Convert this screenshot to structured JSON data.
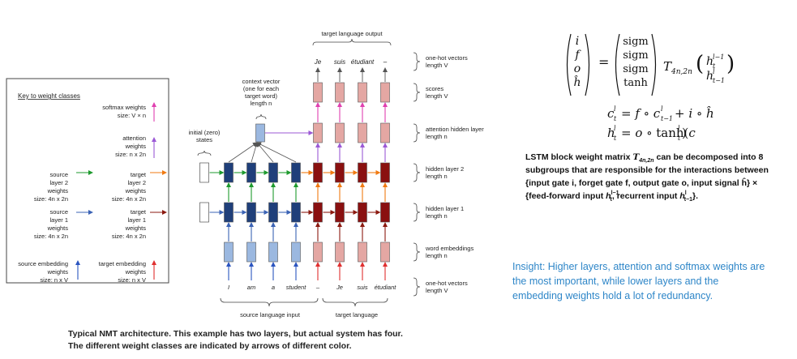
{
  "key": {
    "title": "Key to weight classes",
    "items": [
      {
        "id": "softmax",
        "lines": [
          "softmax weights",
          "size: V × n"
        ],
        "color": "#e040b0"
      },
      {
        "id": "attention",
        "lines": [
          "attention",
          "weights",
          "size: n x 2n"
        ],
        "color": "#9b59d6"
      },
      {
        "id": "src2",
        "lines": [
          "source",
          "layer 2",
          "weights",
          "size: 4n x 2n"
        ],
        "color": "#1e9a2e"
      },
      {
        "id": "tgt2",
        "lines": [
          "target",
          "layer 2",
          "weights",
          "size: 4n x 2n"
        ],
        "color": "#f07a12"
      },
      {
        "id": "src1",
        "lines": [
          "source",
          "layer 1",
          "weights",
          "size: 4n x 2n"
        ],
        "color": "#3b63b5"
      },
      {
        "id": "tgt1",
        "lines": [
          "target",
          "layer 1",
          "weights",
          "size: 4n x 2n"
        ],
        "color": "#8b1a10"
      },
      {
        "id": "srcemb",
        "lines": [
          "source embedding",
          "weights",
          "size: n x V"
        ],
        "color": "#2b55c0"
      },
      {
        "id": "tgtemb",
        "lines": [
          "target embedding",
          "weights",
          "size: n x V"
        ],
        "color": "#e03030"
      }
    ]
  },
  "diagram": {
    "top_label": "target language output",
    "output_words": [
      "Je",
      "suis",
      "étudiant",
      "–"
    ],
    "context_vector": [
      "context vector",
      "(one for each",
      "target word)",
      "length n"
    ],
    "initial_states": [
      "initial (zero)",
      "states"
    ],
    "source_words": [
      "I",
      "am",
      "a",
      "student",
      "–"
    ],
    "target_input_words": [
      "Je",
      "suis",
      "étudiant"
    ],
    "source_label": "source language input",
    "target_label": "target language",
    "right_labels": [
      [
        "one-hot vectors",
        "length V"
      ],
      [
        "scores",
        "length V"
      ],
      [
        "attention hidden layer",
        "length n"
      ],
      [
        "hidden layer 2",
        "length n"
      ],
      [
        "hidden layer 1",
        "length n"
      ],
      [
        "word embeddings",
        "length n"
      ],
      [
        "one-hot vectors",
        "length V"
      ]
    ],
    "colors": {
      "dark_blue": "#1f3f7a",
      "light_blue": "#9bb8e0",
      "dark_red": "#8a1010",
      "light_red": "#e4a7a3"
    }
  },
  "caption": {
    "line1": "Typical NMT architecture. This example has two layers, but actual system has four.",
    "line2": "The different weight classes are indicated by arrows of different color."
  },
  "equations": {
    "vec_left": [
      "i",
      "f",
      "o",
      "ĥ"
    ],
    "vec_mid": [
      "sigm",
      "sigm",
      "sigm",
      "tanh"
    ],
    "matrix": "T",
    "matrix_sub": "4n,2n",
    "eq2": "c",
    "eq3": "h"
  },
  "lstm_text": {
    "lines": [
      "LSTM block weight matrix T4n,2n can be decomposed into 8",
      "subgroups that are responsible for the interactions between",
      "{input gate i, forget gate f, output gate o, input signal ĥ} ×",
      "{feed-forward input htl−1, recurrent input hlt−1}."
    ]
  },
  "insight": {
    "lines": [
      "Insight: Higher layers, attention and softmax weights are",
      "the most important, while lower layers and the",
      "embedding weights hold a lot of redundancy."
    ],
    "color": "#2e86c8"
  }
}
